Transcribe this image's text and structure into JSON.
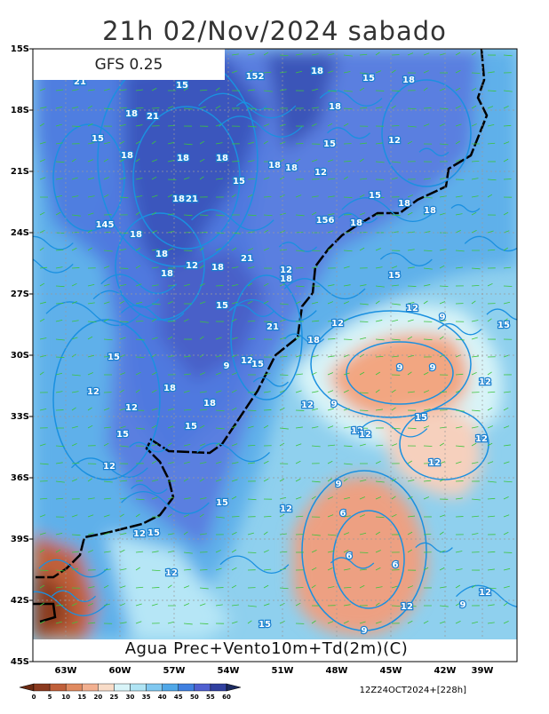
{
  "header": {
    "title": "21h 02/Nov/2024 sabado",
    "model": "GFS 0.25"
  },
  "map": {
    "lat_labels": [
      "15S",
      "18S",
      "21S",
      "24S",
      "27S",
      "30S",
      "33S",
      "36S",
      "39S",
      "42S",
      "45S"
    ],
    "lon_labels": [
      "63W",
      "60W",
      "57W",
      "54W",
      "51W",
      "48W",
      "45W",
      "42W",
      "39W"
    ],
    "caption": "Agua Prec+Vento10m+Td(2m)(C)",
    "contour_labels": [
      "21",
      "15",
      "152",
      "18",
      "15",
      "18",
      "18",
      "21",
      "18",
      "15",
      "18",
      "18",
      "18",
      "15",
      "12",
      "18",
      "18",
      "12",
      "15",
      "18",
      "21",
      "15",
      "18",
      "18",
      "156",
      "18",
      "145",
      "18",
      "18",
      "12",
      "18",
      "21",
      "12",
      "18",
      "15",
      "18",
      "15",
      "12",
      "9",
      "15",
      "21",
      "18",
      "15",
      "9",
      "12",
      "15",
      "18",
      "12",
      "12",
      "18",
      "9",
      "12",
      "15",
      "15",
      "15",
      "12",
      "12",
      "12",
      "12",
      "12",
      "9",
      "15",
      "12",
      "6",
      "12",
      "15",
      "6",
      "6",
      "12",
      "12",
      "12",
      "9",
      "9",
      "15",
      "12",
      "9",
      "9",
      "12"
    ]
  },
  "colorbar": {
    "labels": [
      0,
      5,
      10,
      15,
      20,
      25,
      30,
      35,
      40,
      45,
      50,
      55,
      60
    ]
  },
  "footer": {
    "run": "12Z24OCT2024+[228h]"
  }
}
